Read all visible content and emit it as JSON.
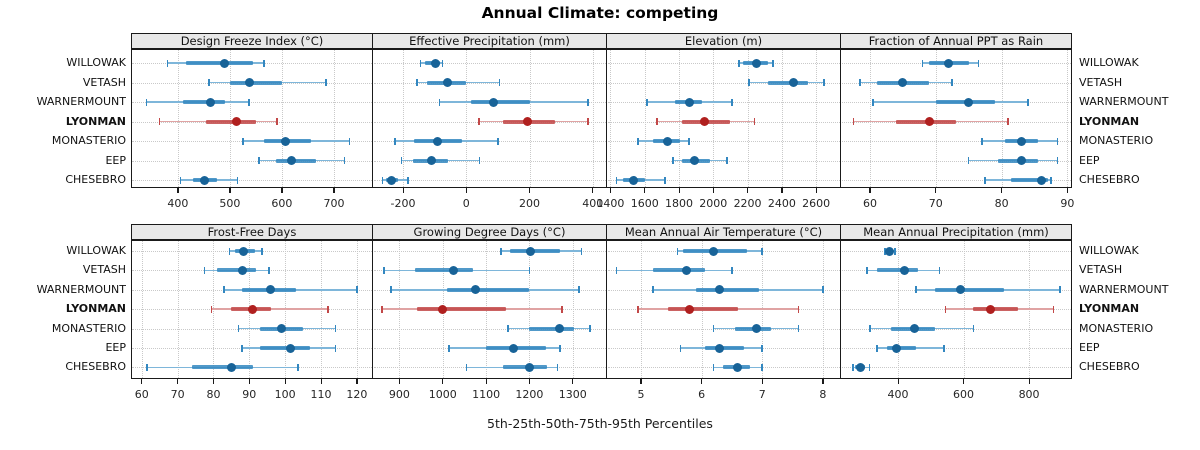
{
  "title": "Annual Climate: competing",
  "caption": "5th-25th-50th-75th-95th Percentiles",
  "colors": {
    "normal": {
      "line": "#7eb6da",
      "band": "#3387c0",
      "dot": "#186398"
    },
    "highlight": {
      "line": "#e0a3a3",
      "band": "#c24848",
      "dot": "#b0201f"
    },
    "strip_bg": "#e8e8e8",
    "border": "#1a1a1a",
    "grid": "#c9c9c9"
  },
  "chart_data": {
    "type": "dotplot-intervals",
    "note": "5th-25th-50th-75th-95th percentile interval plot, 8 panels, 7 sites",
    "sites": [
      "WILLOWAK",
      "VETASH",
      "WARNERMOUNT",
      "LYONMAN",
      "MONASTERIO",
      "EEP",
      "CHESEBRO"
    ],
    "highlight_site": "LYONMAN",
    "panels": [
      {
        "title": "Design Freeze Index (°C)",
        "row": 0,
        "col": 0,
        "xlim": [
          310,
          775
        ],
        "ticks": [
          400,
          500,
          600,
          700
        ],
        "percentiles": {
          "WILLOWAK": [
            380,
            415,
            490,
            545,
            565
          ],
          "VETASH": [
            460,
            500,
            537,
            600,
            685
          ],
          "WARNERMOUNT": [
            340,
            410,
            462,
            490,
            537
          ],
          "LYONMAN": [
            365,
            455,
            512,
            550,
            590
          ],
          "MONASTERIO": [
            525,
            565,
            606,
            655,
            730
          ],
          "EEP": [
            556,
            588,
            618,
            665,
            720
          ],
          "CHESEBRO": [
            405,
            430,
            452,
            475,
            515
          ]
        }
      },
      {
        "title": "Effective Precipitation (mm)",
        "row": 0,
        "col": 1,
        "xlim": [
          -295,
          445
        ],
        "ticks": [
          -200,
          0,
          200,
          400
        ],
        "percentiles": {
          "WILLOWAK": [
            -145,
            -130,
            -98,
            -82,
            -75
          ],
          "VETASH": [
            -155,
            -125,
            -60,
            0,
            105
          ],
          "WARNERMOUNT": [
            -85,
            15,
            85,
            200,
            385
          ],
          "LYONMAN": [
            40,
            115,
            195,
            280,
            385
          ],
          "MONASTERIO": [
            -225,
            -165,
            -90,
            -15,
            100
          ],
          "EEP": [
            -205,
            -170,
            -110,
            -58,
            42
          ],
          "CHESEBRO": [
            -265,
            -255,
            -236,
            -217,
            -185
          ]
        }
      },
      {
        "title": "Elevation (m)",
        "row": 0,
        "col": 2,
        "xlim": [
          1380,
          2745
        ],
        "ticks": [
          1400,
          1600,
          1800,
          2000,
          2200,
          2400,
          2600
        ],
        "percentiles": {
          "WILLOWAK": [
            2150,
            2175,
            2250,
            2320,
            2350
          ],
          "VETASH": [
            2210,
            2320,
            2465,
            2555,
            2645
          ],
          "WARNERMOUNT": [
            1615,
            1775,
            1860,
            1935,
            2110
          ],
          "LYONMAN": [
            1670,
            1815,
            1950,
            2100,
            2240
          ],
          "MONASTERIO": [
            1560,
            1650,
            1735,
            1805,
            1860
          ],
          "EEP": [
            1765,
            1815,
            1890,
            1980,
            2080
          ],
          "CHESEBRO": [
            1435,
            1475,
            1535,
            1600,
            1720
          ]
        }
      },
      {
        "title": "Fraction of Annual PPT as Rain",
        "row": 0,
        "col": 3,
        "xlim": [
          55.6,
          90.7
        ],
        "ticks": [
          60,
          70,
          80,
          90
        ],
        "percentiles": {
          "WILLOWAK": [
            68,
            69,
            72,
            75,
            76.5
          ],
          "VETASH": [
            58.5,
            61,
            65,
            69,
            72.5
          ],
          "WARNERMOUNT": [
            60.5,
            70,
            75,
            79,
            84
          ],
          "LYONMAN": [
            57.5,
            64,
            69,
            73,
            81
          ],
          "MONASTERIO": [
            77,
            80.5,
            83,
            85.5,
            88.5
          ],
          "EEP": [
            75,
            79.5,
            83,
            85.5,
            88.5
          ],
          "CHESEBRO": [
            77.5,
            81.5,
            86,
            87,
            87.5
          ]
        }
      },
      {
        "title": "Frost-Free Days",
        "row": 1,
        "col": 0,
        "xlim": [
          57,
          124.5
        ],
        "ticks": [
          60,
          70,
          80,
          90,
          100,
          110,
          120
        ],
        "percentiles": {
          "WILLOWAK": [
            84.5,
            86,
            88.5,
            91.5,
            93.5
          ],
          "VETASH": [
            77.5,
            81,
            88,
            92,
            95.5
          ],
          "WARNERMOUNT": [
            83,
            88,
            96,
            103,
            120
          ],
          "LYONMAN": [
            79.5,
            85,
            91,
            96,
            112
          ],
          "MONASTERIO": [
            87,
            93,
            99,
            105,
            114
          ],
          "EEP": [
            88,
            93,
            101.5,
            107,
            114
          ],
          "CHESEBRO": [
            61.5,
            74,
            85,
            91,
            103.5
          ]
        }
      },
      {
        "title": "Growing Degree Days (°C)",
        "row": 1,
        "col": 1,
        "xlim": [
          839,
          1379
        ],
        "ticks": [
          900,
          1000,
          1100,
          1200,
          1300
        ],
        "percentiles": {
          "WILLOWAK": [
            1135,
            1155,
            1203,
            1270,
            1320
          ],
          "VETASH": [
            865,
            935,
            1025,
            1070,
            1200
          ],
          "WARNERMOUNT": [
            880,
            1010,
            1075,
            1200,
            1315
          ],
          "LYONMAN": [
            860,
            940,
            1000,
            1145,
            1275
          ],
          "MONASTERIO": [
            1150,
            1200,
            1270,
            1303,
            1340
          ],
          "EEP": [
            1015,
            1100,
            1163,
            1238,
            1270
          ],
          "CHESEBRO": [
            1055,
            1140,
            1200,
            1240,
            1265
          ]
        }
      },
      {
        "title": "Mean Annual Air Temperature (°C)",
        "row": 1,
        "col": 2,
        "xlim": [
          4.44,
          8.3
        ],
        "ticks": [
          5,
          6,
          7,
          8
        ],
        "percentiles": {
          "WILLOWAK": [
            5.6,
            5.7,
            6.2,
            6.75,
            7.0
          ],
          "VETASH": [
            4.6,
            5.2,
            5.75,
            6.05,
            6.5
          ],
          "WARNERMOUNT": [
            5.2,
            5.9,
            6.3,
            6.95,
            8.0
          ],
          "LYONMAN": [
            4.95,
            5.45,
            5.8,
            6.6,
            7.6
          ],
          "MONASTERIO": [
            6.2,
            6.55,
            6.9,
            7.15,
            7.6
          ],
          "EEP": [
            5.65,
            6.05,
            6.3,
            6.7,
            7.0
          ],
          "CHESEBRO": [
            6.2,
            6.35,
            6.6,
            6.8,
            7.0
          ]
        }
      },
      {
        "title": "Mean Annual Precipitation (mm)",
        "row": 1,
        "col": 3,
        "xlim": [
          226,
          931
        ],
        "ticks": [
          400,
          600,
          800
        ],
        "percentiles": {
          "WILLOWAK": [
            360,
            367,
            375,
            383,
            390
          ],
          "VETASH": [
            305,
            337,
            420,
            460,
            527
          ],
          "WARNERMOUNT": [
            455,
            512,
            590,
            725,
            895
          ],
          "LYONMAN": [
            545,
            630,
            683,
            765,
            875
          ],
          "MONASTERIO": [
            315,
            378,
            450,
            512,
            630
          ],
          "EEP": [
            335,
            367,
            395,
            455,
            540
          ],
          "CHESEBRO": [
            263,
            270,
            286,
            300,
            313
          ]
        }
      }
    ]
  }
}
